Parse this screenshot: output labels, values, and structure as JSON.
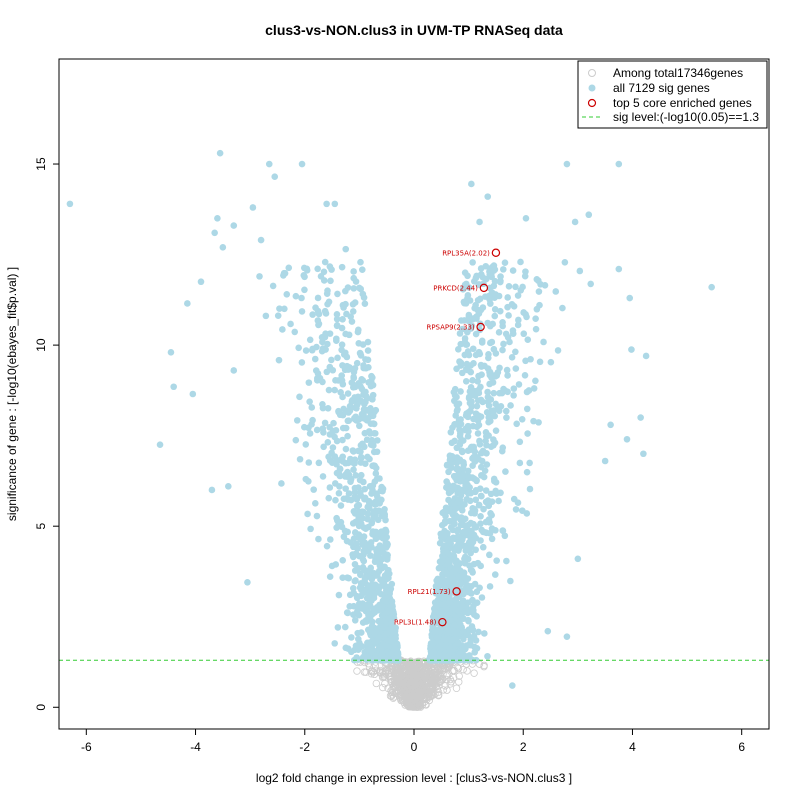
{
  "chart_data": {
    "type": "scatter",
    "title": "clus3-vs-NON.clus3 in UVM-TP RNASeq data",
    "xlabel": "log2 fold change in expression level : [clus3-vs-NON.clus3 ]",
    "ylabel": "significance of gene : [-log10(ebayes_fit$p.val) ]",
    "xlim": [
      -6.5,
      6.5
    ],
    "ylim": [
      -0.6,
      17.9
    ],
    "xticks": [
      "-6",
      "-4",
      "-2",
      "0",
      "2",
      "4",
      "6"
    ],
    "yticks": [
      "0",
      "5",
      "10",
      "15"
    ],
    "sig_level": 1.3,
    "colors": {
      "nonsig": "#cccccc",
      "sig": "#add8e6",
      "highlight": "#cc0000",
      "sigline": "#33cc33"
    },
    "legend": {
      "position": "top-right",
      "entries": [
        "Among total17346genes",
        "all 7129 sig genes",
        "top 5 core enriched genes",
        "sig level:(-log10(0.05)==1.3"
      ]
    },
    "highlighted_genes": [
      {
        "label": "RPL35A(2.02)",
        "x": 1.5,
        "y": 12.55
      },
      {
        "label": "PRKCD(2.44)",
        "x": 1.28,
        "y": 11.58
      },
      {
        "label": "RPSAP9(2.33)",
        "x": 1.22,
        "y": 10.5
      },
      {
        "label": "RPL21(1.73)",
        "x": 0.78,
        "y": 3.2
      },
      {
        "label": "RPL3L(1.48)",
        "x": 0.52,
        "y": 2.35
      }
    ],
    "outlier_points": [
      {
        "x": -6.3,
        "y": 13.9
      },
      {
        "x": -4.65,
        "y": 7.25
      },
      {
        "x": -4.45,
        "y": 9.8
      },
      {
        "x": -4.4,
        "y": 8.85
      },
      {
        "x": -4.15,
        "y": 11.15
      },
      {
        "x": -4.05,
        "y": 8.65
      },
      {
        "x": -3.9,
        "y": 11.75
      },
      {
        "x": -3.55,
        "y": 15.3
      },
      {
        "x": -3.65,
        "y": 13.1
      },
      {
        "x": -3.6,
        "y": 13.5
      },
      {
        "x": -3.5,
        "y": 12.7
      },
      {
        "x": -3.3,
        "y": 13.3
      },
      {
        "x": -3.05,
        "y": 3.45
      },
      {
        "x": -2.95,
        "y": 13.8
      },
      {
        "x": -2.8,
        "y": 12.9
      },
      {
        "x": -2.65,
        "y": 15.0
      },
      {
        "x": -2.55,
        "y": 14.65
      },
      {
        "x": -2.05,
        "y": 15.0
      },
      {
        "x": -1.6,
        "y": 13.9
      },
      {
        "x": -1.45,
        "y": 13.9
      },
      {
        "x": -1.25,
        "y": 12.65
      },
      {
        "x": -3.3,
        "y": 9.3
      },
      {
        "x": -3.7,
        "y": 6.0
      },
      {
        "x": -3.4,
        "y": 6.1
      },
      {
        "x": 1.05,
        "y": 14.45
      },
      {
        "x": 1.2,
        "y": 13.4
      },
      {
        "x": 1.35,
        "y": 14.1
      },
      {
        "x": 2.05,
        "y": 13.5
      },
      {
        "x": 2.8,
        "y": 15.0
      },
      {
        "x": 3.2,
        "y": 13.6
      },
      {
        "x": 3.75,
        "y": 15.0
      },
      {
        "x": 2.95,
        "y": 13.4
      },
      {
        "x": 5.45,
        "y": 11.6
      },
      {
        "x": 4.25,
        "y": 9.7
      },
      {
        "x": 4.15,
        "y": 8.0
      },
      {
        "x": 4.2,
        "y": 7.0
      },
      {
        "x": 3.75,
        "y": 12.1
      },
      {
        "x": 3.95,
        "y": 11.3
      },
      {
        "x": 3.0,
        "y": 4.1
      },
      {
        "x": 2.8,
        "y": 1.95
      },
      {
        "x": 2.45,
        "y": 2.1
      },
      {
        "x": 1.8,
        "y": 0.6
      },
      {
        "x": 3.6,
        "y": 7.8
      },
      {
        "x": 3.9,
        "y": 7.4
      },
      {
        "x": 3.5,
        "y": 6.8
      }
    ]
  }
}
